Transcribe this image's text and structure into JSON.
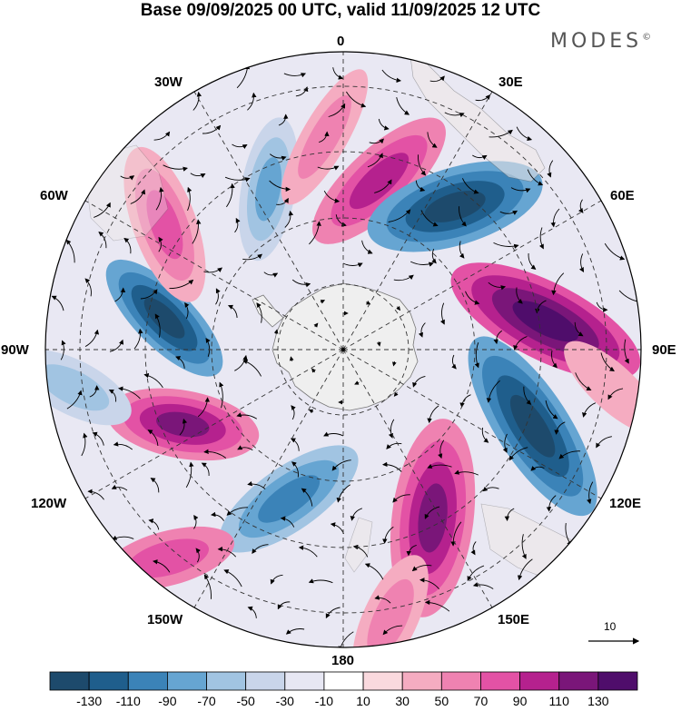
{
  "title": "Base 09/09/2025 00 UTC, valid 11/09/2025 12 UTC",
  "brand": "MODES",
  "brand_mark": "©",
  "longitude_labels": {
    "lon_0": "0",
    "lon_30e": "30E",
    "lon_60e": "60E",
    "lon_90e": "90E",
    "lon_120e": "120E",
    "lon_150e": "150E",
    "lon_180": "180",
    "lon_150w": "150W",
    "lon_120w": "120W",
    "lon_90w": "90W",
    "lon_60w": "60W",
    "lon_30w": "30W"
  },
  "reference_vector": "10",
  "colorbar": {
    "levels": [
      "-130",
      "-110",
      "-90",
      "-70",
      "-50",
      "-30",
      "-10",
      "10",
      "30",
      "50",
      "70",
      "90",
      "110",
      "130"
    ],
    "colors": [
      "#1d4a6c",
      "#1f5e8c",
      "#3b83b8",
      "#66a5d2",
      "#a1c4e2",
      "#c9d5ea",
      "#e7e7f3",
      "#ffffff",
      "#fad9de",
      "#f5acc1",
      "#ef82b1",
      "#e352a5",
      "#b5218e",
      "#7a1679",
      "#4f0d6b"
    ]
  },
  "palette": {
    "land": "#f0e8e5",
    "antarctica": "#efefef",
    "grid": "#333333"
  }
}
